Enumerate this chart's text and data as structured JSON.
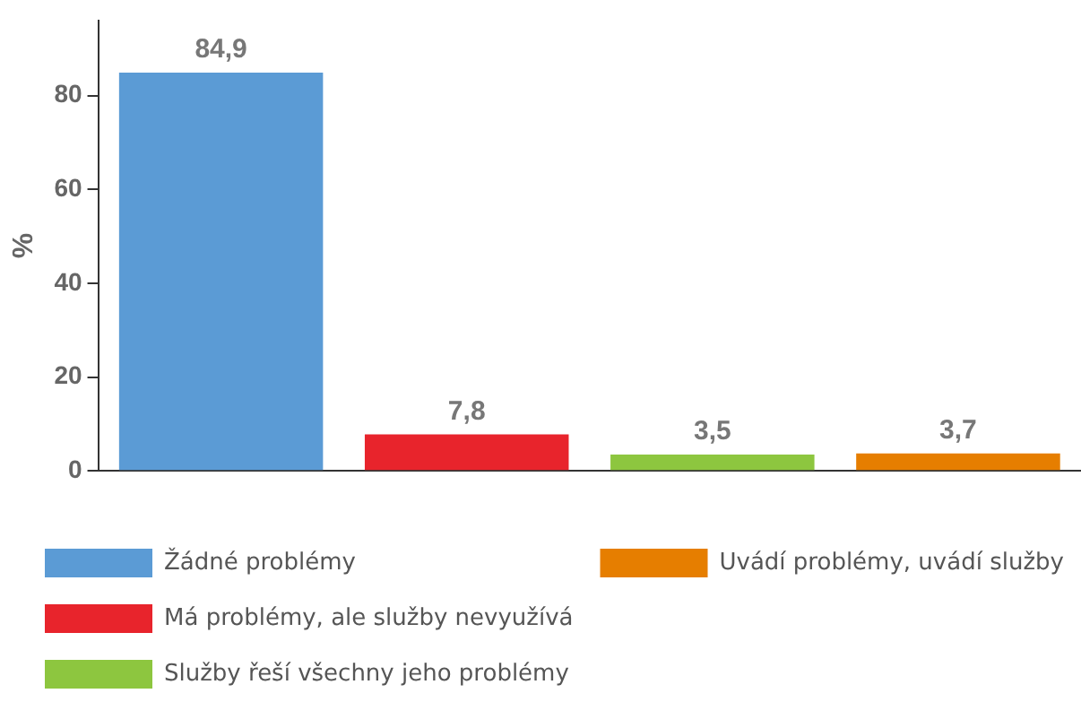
{
  "chart_data": {
    "type": "bar",
    "ylabel": "%",
    "categories": [
      null,
      null,
      null,
      null
    ],
    "series": [
      {
        "name": "Žádné problémy",
        "color": "#5b9bd5",
        "values": [
          84.9,
          null,
          null,
          null
        ],
        "value_labels": [
          "84,9",
          null,
          null,
          null
        ]
      },
      {
        "name": "Má problémy, ale služby nevyužívá",
        "color": "#e8242c",
        "values": [
          null,
          7.8,
          null,
          null
        ],
        "value_labels": [
          null,
          "7,8",
          null,
          null
        ]
      },
      {
        "name": "Služby řeší všechny jeho problémy",
        "color": "#8dc63f",
        "values": [
          null,
          null,
          3.5,
          null
        ],
        "value_labels": [
          null,
          null,
          "3,5",
          null
        ]
      },
      {
        "name": "Uvádí problémy, uvádí služby",
        "color": "#e67e00",
        "values": [
          null,
          null,
          null,
          3.7
        ],
        "value_labels": [
          null,
          null,
          null,
          "3,7"
        ]
      }
    ],
    "ylim": [
      0,
      96
    ],
    "yticks": [
      0,
      20,
      40,
      60,
      80
    ],
    "grid": false,
    "legend": "bottom"
  }
}
